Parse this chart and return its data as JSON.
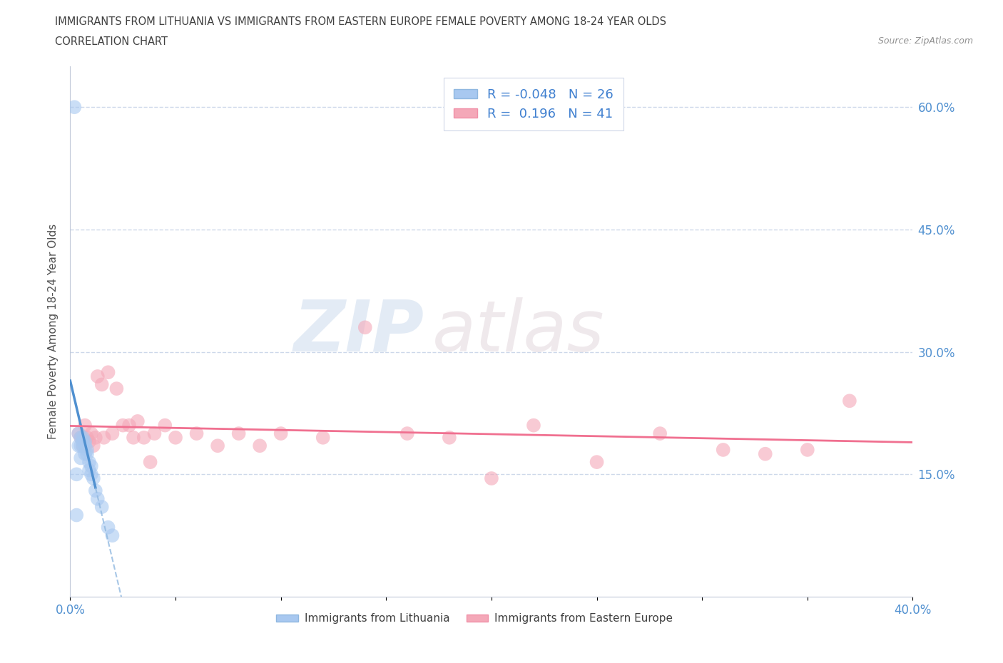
{
  "title_line1": "IMMIGRANTS FROM LITHUANIA VS IMMIGRANTS FROM EASTERN EUROPE FEMALE POVERTY AMONG 18-24 YEAR OLDS",
  "title_line2": "CORRELATION CHART",
  "source_text": "Source: ZipAtlas.com",
  "ylabel": "Female Poverty Among 18-24 Year Olds",
  "xlim": [
    0.0,
    0.4
  ],
  "ylim": [
    0.0,
    0.65
  ],
  "xticks": [
    0.0,
    0.05,
    0.1,
    0.15,
    0.2,
    0.25,
    0.3,
    0.35,
    0.4
  ],
  "xtick_labels": [
    "0.0%",
    "",
    "",
    "",
    "",
    "",
    "",
    "",
    "40.0%"
  ],
  "ytick_positions": [
    0.15,
    0.3,
    0.45,
    0.6
  ],
  "ytick_labels": [
    "15.0%",
    "30.0%",
    "45.0%",
    "60.0%"
  ],
  "watermark_zip": "ZIP",
  "watermark_atlas": "atlas",
  "color_lithuania": "#a8c8f0",
  "color_eastern": "#f4a8b8",
  "color_line_lithuania_solid": "#5090d0",
  "color_line_lithuania_dash": "#90b8e0",
  "color_line_eastern": "#f07090",
  "color_title": "#404040",
  "color_axis_label": "#505050",
  "color_tick_label": "#5090d0",
  "background_color": "#ffffff",
  "grid_color": "#c8d4e8",
  "lithuania_x": [
    0.002,
    0.003,
    0.003,
    0.004,
    0.004,
    0.005,
    0.005,
    0.005,
    0.006,
    0.006,
    0.006,
    0.007,
    0.007,
    0.007,
    0.008,
    0.008,
    0.009,
    0.009,
    0.01,
    0.01,
    0.011,
    0.012,
    0.013,
    0.015,
    0.018,
    0.02
  ],
  "lithuania_y": [
    0.6,
    0.15,
    0.1,
    0.2,
    0.185,
    0.195,
    0.185,
    0.17,
    0.195,
    0.19,
    0.185,
    0.19,
    0.185,
    0.175,
    0.18,
    0.175,
    0.165,
    0.155,
    0.16,
    0.15,
    0.145,
    0.13,
    0.12,
    0.11,
    0.085,
    0.075
  ],
  "eastern_x": [
    0.004,
    0.005,
    0.006,
    0.007,
    0.008,
    0.009,
    0.01,
    0.011,
    0.012,
    0.013,
    0.015,
    0.016,
    0.018,
    0.02,
    0.022,
    0.025,
    0.028,
    0.03,
    0.032,
    0.035,
    0.038,
    0.04,
    0.045,
    0.05,
    0.06,
    0.07,
    0.08,
    0.09,
    0.1,
    0.12,
    0.14,
    0.16,
    0.18,
    0.2,
    0.22,
    0.25,
    0.28,
    0.31,
    0.33,
    0.35,
    0.37
  ],
  "eastern_y": [
    0.2,
    0.195,
    0.185,
    0.21,
    0.195,
    0.19,
    0.2,
    0.185,
    0.195,
    0.27,
    0.26,
    0.195,
    0.275,
    0.2,
    0.255,
    0.21,
    0.21,
    0.195,
    0.215,
    0.195,
    0.165,
    0.2,
    0.21,
    0.195,
    0.2,
    0.185,
    0.2,
    0.185,
    0.2,
    0.195,
    0.33,
    0.2,
    0.195,
    0.145,
    0.21,
    0.165,
    0.2,
    0.18,
    0.175,
    0.18,
    0.24
  ]
}
